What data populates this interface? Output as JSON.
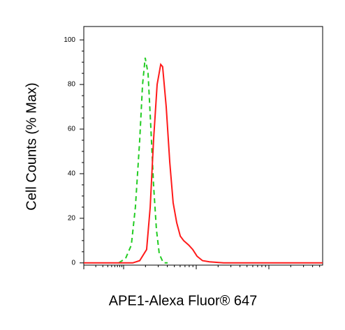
{
  "chart_data": {
    "type": "line",
    "xlabel": "APE1-Alexa Fluor® 647",
    "ylabel": "Cell Counts (% Max)",
    "xlim": [
      0,
      100
    ],
    "ylim": [
      -1,
      106
    ],
    "yticks": [
      0,
      20,
      40,
      60,
      80,
      100
    ],
    "series": [
      {
        "color": "#22cc22",
        "style": "dashed",
        "x": [
          14.6,
          17.5,
          19.9,
          21.6,
          23.4,
          24.6,
          25.7,
          26.9,
          28.1,
          29.2,
          30.4,
          31.6,
          33.3,
          35.1
        ],
        "values": [
          0,
          2,
          8,
          25,
          55,
          80,
          92,
          85,
          60,
          35,
          15,
          4,
          0,
          0
        ]
      },
      {
        "color": "#ff1a1a",
        "style": "solid",
        "x": [
          0,
          20.5,
          23.4,
          26.3,
          27.8,
          29.2,
          30.7,
          32.2,
          33.0,
          34.5,
          36.0,
          37.4,
          38.9,
          40.4,
          41.8,
          43.9,
          45.6,
          47.4,
          49.7,
          52.6,
          58.5,
          100
        ],
        "values": [
          0,
          0,
          1,
          6,
          25,
          55,
          80,
          89,
          88,
          70,
          45,
          27,
          18,
          12,
          10,
          8,
          6,
          3,
          1,
          0.5,
          0,
          0
        ]
      }
    ]
  }
}
